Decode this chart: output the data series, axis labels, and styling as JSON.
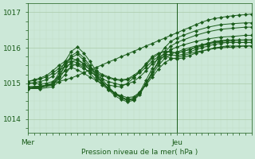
{
  "bg_color": "#cce8d8",
  "line_color": "#1a5c1a",
  "grid_major_color": "#aacaaa",
  "grid_minor_color": "#c0dcc0",
  "xlabel": "Pression niveau de la mer( hPa )",
  "ylim": [
    1013.6,
    1017.25
  ],
  "yticks": [
    1014,
    1015,
    1016,
    1017
  ],
  "xlim": [
    0,
    36
  ],
  "xtick_positions": [
    0,
    24
  ],
  "xtick_labels": [
    "Mer",
    "Jeu"
  ],
  "vline_x": 24,
  "series": [
    [
      0,
      1014.9,
      36,
      1016.9
    ],
    [
      0,
      1014.9,
      36,
      1016.85
    ],
    [
      0,
      1015.0,
      36,
      1016.75
    ],
    [
      0,
      1015.05,
      36,
      1016.65
    ],
    [
      0,
      1015.1,
      36,
      1016.55
    ]
  ],
  "n_points": 37,
  "ensemble": [
    {
      "x": [
        0,
        1,
        2,
        3,
        4,
        5,
        6,
        7,
        8,
        9,
        10,
        11,
        12,
        13,
        14,
        15,
        16,
        17,
        18,
        19,
        20,
        21,
        22,
        23,
        24,
        25,
        26,
        27,
        28,
        29,
        30,
        31,
        32,
        33,
        34,
        35,
        36
      ],
      "y": [
        1014.9,
        1014.9,
        1014.92,
        1014.95,
        1015.0,
        1015.05,
        1015.1,
        1015.15,
        1015.22,
        1015.3,
        1015.38,
        1015.45,
        1015.52,
        1015.6,
        1015.67,
        1015.75,
        1015.82,
        1015.9,
        1015.97,
        1016.05,
        1016.12,
        1016.2,
        1016.27,
        1016.35,
        1016.42,
        1016.5,
        1016.57,
        1016.65,
        1016.72,
        1016.78,
        1016.82,
        1016.85,
        1016.88,
        1016.9,
        1016.92,
        1016.93,
        1016.95
      ]
    },
    {
      "x": [
        0,
        1,
        2,
        3,
        4,
        5,
        6,
        7,
        8,
        9,
        10,
        11,
        12,
        13,
        14,
        15,
        16,
        17,
        18,
        19,
        20,
        21,
        22,
        23,
        24,
        25,
        26,
        27,
        28,
        29,
        30,
        31,
        32,
        33,
        34,
        35,
        36
      ],
      "y": [
        1015.0,
        1015.0,
        1014.98,
        1015.0,
        1015.05,
        1015.2,
        1015.35,
        1015.45,
        1015.38,
        1015.28,
        1015.18,
        1015.08,
        1015.0,
        1014.95,
        1014.92,
        1014.9,
        1015.0,
        1015.15,
        1015.35,
        1015.55,
        1015.75,
        1015.85,
        1015.9,
        1015.88,
        1015.85,
        1015.9,
        1015.95,
        1016.0,
        1016.05,
        1016.1,
        1016.15,
        1016.15,
        1016.15,
        1016.15,
        1016.15,
        1016.15,
        1016.15
      ]
    },
    {
      "x": [
        0,
        1,
        2,
        3,
        4,
        5,
        6,
        7,
        8,
        9,
        10,
        11,
        12,
        13,
        14,
        15,
        16,
        17,
        18,
        19,
        20,
        21,
        22,
        23,
        24,
        25,
        26,
        27,
        28,
        29,
        30,
        31,
        32,
        33,
        34,
        35,
        36
      ],
      "y": [
        1015.0,
        1015.02,
        1015.05,
        1015.1,
        1015.2,
        1015.35,
        1015.48,
        1015.55,
        1015.5,
        1015.42,
        1015.32,
        1015.22,
        1015.12,
        1015.05,
        1015.0,
        1014.95,
        1014.98,
        1015.05,
        1015.18,
        1015.35,
        1015.55,
        1015.68,
        1015.75,
        1015.72,
        1015.68,
        1015.72,
        1015.78,
        1015.85,
        1015.9,
        1015.95,
        1016.0,
        1016.02,
        1016.05,
        1016.05,
        1016.05,
        1016.05,
        1016.05
      ]
    },
    {
      "x": [
        0,
        1,
        2,
        3,
        4,
        5,
        6,
        7,
        8,
        9,
        10,
        11,
        12,
        13,
        14,
        15,
        16,
        17,
        18,
        19,
        20,
        21,
        22,
        23,
        24,
        25,
        26,
        27,
        28,
        29,
        30,
        31,
        32,
        33,
        34,
        35,
        36
      ],
      "y": [
        1015.05,
        1015.08,
        1015.12,
        1015.18,
        1015.28,
        1015.42,
        1015.55,
        1015.62,
        1015.58,
        1015.5,
        1015.4,
        1015.3,
        1015.22,
        1015.15,
        1015.1,
        1015.08,
        1015.1,
        1015.18,
        1015.3,
        1015.45,
        1015.62,
        1015.75,
        1015.82,
        1015.8,
        1015.78,
        1015.82,
        1015.88,
        1015.95,
        1016.0,
        1016.05,
        1016.1,
        1016.12,
        1016.15,
        1016.15,
        1016.15,
        1016.15,
        1016.15
      ]
    },
    {
      "x": [
        0,
        1,
        2,
        3,
        4,
        5,
        6,
        7,
        8,
        9,
        10,
        11,
        12,
        13,
        14,
        15,
        16,
        17,
        18,
        19,
        20,
        21,
        22,
        23,
        24,
        25,
        26,
        27,
        28,
        29,
        30,
        31,
        32,
        33,
        34,
        35,
        36
      ],
      "y": [
        1015.05,
        1015.1,
        1015.15,
        1015.22,
        1015.35,
        1015.5,
        1015.62,
        1015.7,
        1015.65,
        1015.55,
        1015.45,
        1015.35,
        1015.25,
        1015.18,
        1015.12,
        1015.1,
        1015.12,
        1015.22,
        1015.35,
        1015.52,
        1015.7,
        1015.82,
        1015.9,
        1015.88,
        1015.85,
        1015.9,
        1015.95,
        1016.02,
        1016.08,
        1016.13,
        1016.18,
        1016.2,
        1016.22,
        1016.22,
        1016.22,
        1016.22,
        1016.22
      ]
    },
    {
      "x": [
        0,
        2,
        4,
        5,
        6,
        7,
        8,
        9,
        10,
        11,
        12,
        13,
        14,
        15,
        16,
        17,
        18,
        19,
        20,
        21,
        22,
        23,
        24,
        25,
        27,
        29,
        31,
        33,
        35,
        36
      ],
      "y": [
        1014.85,
        1014.85,
        1014.9,
        1015.05,
        1015.25,
        1015.48,
        1015.55,
        1015.45,
        1015.28,
        1015.1,
        1014.95,
        1014.82,
        1014.72,
        1014.65,
        1014.6,
        1014.62,
        1014.75,
        1014.95,
        1015.18,
        1015.4,
        1015.58,
        1015.68,
        1015.72,
        1015.78,
        1015.88,
        1015.95,
        1016.0,
        1016.02,
        1016.05,
        1016.05
      ]
    },
    {
      "x": [
        0,
        2,
        4,
        5,
        6,
        7,
        8,
        9,
        10,
        11,
        12,
        13,
        14,
        15,
        16,
        17,
        18,
        19,
        20,
        21,
        22,
        23,
        24,
        25,
        27,
        29,
        31,
        33,
        35,
        36
      ],
      "y": [
        1014.9,
        1014.92,
        1014.95,
        1015.12,
        1015.38,
        1015.6,
        1015.68,
        1015.55,
        1015.38,
        1015.18,
        1015.0,
        1014.85,
        1014.72,
        1014.62,
        1014.55,
        1014.58,
        1014.72,
        1014.98,
        1015.25,
        1015.5,
        1015.7,
        1015.82,
        1015.88,
        1015.95,
        1016.05,
        1016.12,
        1016.18,
        1016.2,
        1016.22,
        1016.22
      ]
    },
    {
      "x": [
        0,
        2,
        4,
        5,
        6,
        7,
        8,
        9,
        10,
        11,
        12,
        13,
        14,
        15,
        16,
        17,
        18,
        19,
        20,
        21,
        22,
        23,
        24,
        25,
        27,
        29,
        31,
        33,
        35,
        36
      ],
      "y": [
        1014.85,
        1014.88,
        1014.95,
        1015.18,
        1015.48,
        1015.72,
        1015.82,
        1015.65,
        1015.45,
        1015.22,
        1015.02,
        1014.85,
        1014.7,
        1014.6,
        1014.52,
        1014.55,
        1014.72,
        1015.0,
        1015.3,
        1015.58,
        1015.8,
        1015.95,
        1016.02,
        1016.08,
        1016.18,
        1016.25,
        1016.3,
        1016.32,
        1016.35,
        1016.35
      ]
    },
    {
      "x": [
        0,
        2,
        4,
        5,
        6,
        7,
        8,
        9,
        10,
        11,
        12,
        13,
        14,
        15,
        16,
        17,
        18,
        19,
        20,
        21,
        22,
        23,
        24,
        25,
        27,
        29,
        31,
        33,
        35,
        36
      ],
      "y": [
        1014.85,
        1014.9,
        1015.0,
        1015.28,
        1015.62,
        1015.9,
        1016.02,
        1015.85,
        1015.62,
        1015.35,
        1015.1,
        1014.9,
        1014.72,
        1014.6,
        1014.52,
        1014.55,
        1014.75,
        1015.08,
        1015.42,
        1015.75,
        1016.0,
        1016.18,
        1016.28,
        1016.35,
        1016.48,
        1016.58,
        1016.65,
        1016.68,
        1016.7,
        1016.7
      ]
    },
    {
      "x": [
        0,
        2,
        4,
        5,
        6,
        7,
        8,
        9,
        10,
        11,
        12,
        13,
        14,
        15,
        16,
        17,
        18,
        19,
        20,
        21,
        22,
        23,
        24,
        25,
        27,
        29,
        31,
        33,
        35,
        36
      ],
      "y": [
        1014.88,
        1014.9,
        1014.98,
        1015.2,
        1015.52,
        1015.78,
        1015.88,
        1015.72,
        1015.5,
        1015.25,
        1015.02,
        1014.82,
        1014.65,
        1014.55,
        1014.48,
        1014.52,
        1014.68,
        1014.98,
        1015.32,
        1015.62,
        1015.88,
        1016.05,
        1016.15,
        1016.22,
        1016.35,
        1016.45,
        1016.52,
        1016.55,
        1016.58,
        1016.58
      ]
    }
  ]
}
